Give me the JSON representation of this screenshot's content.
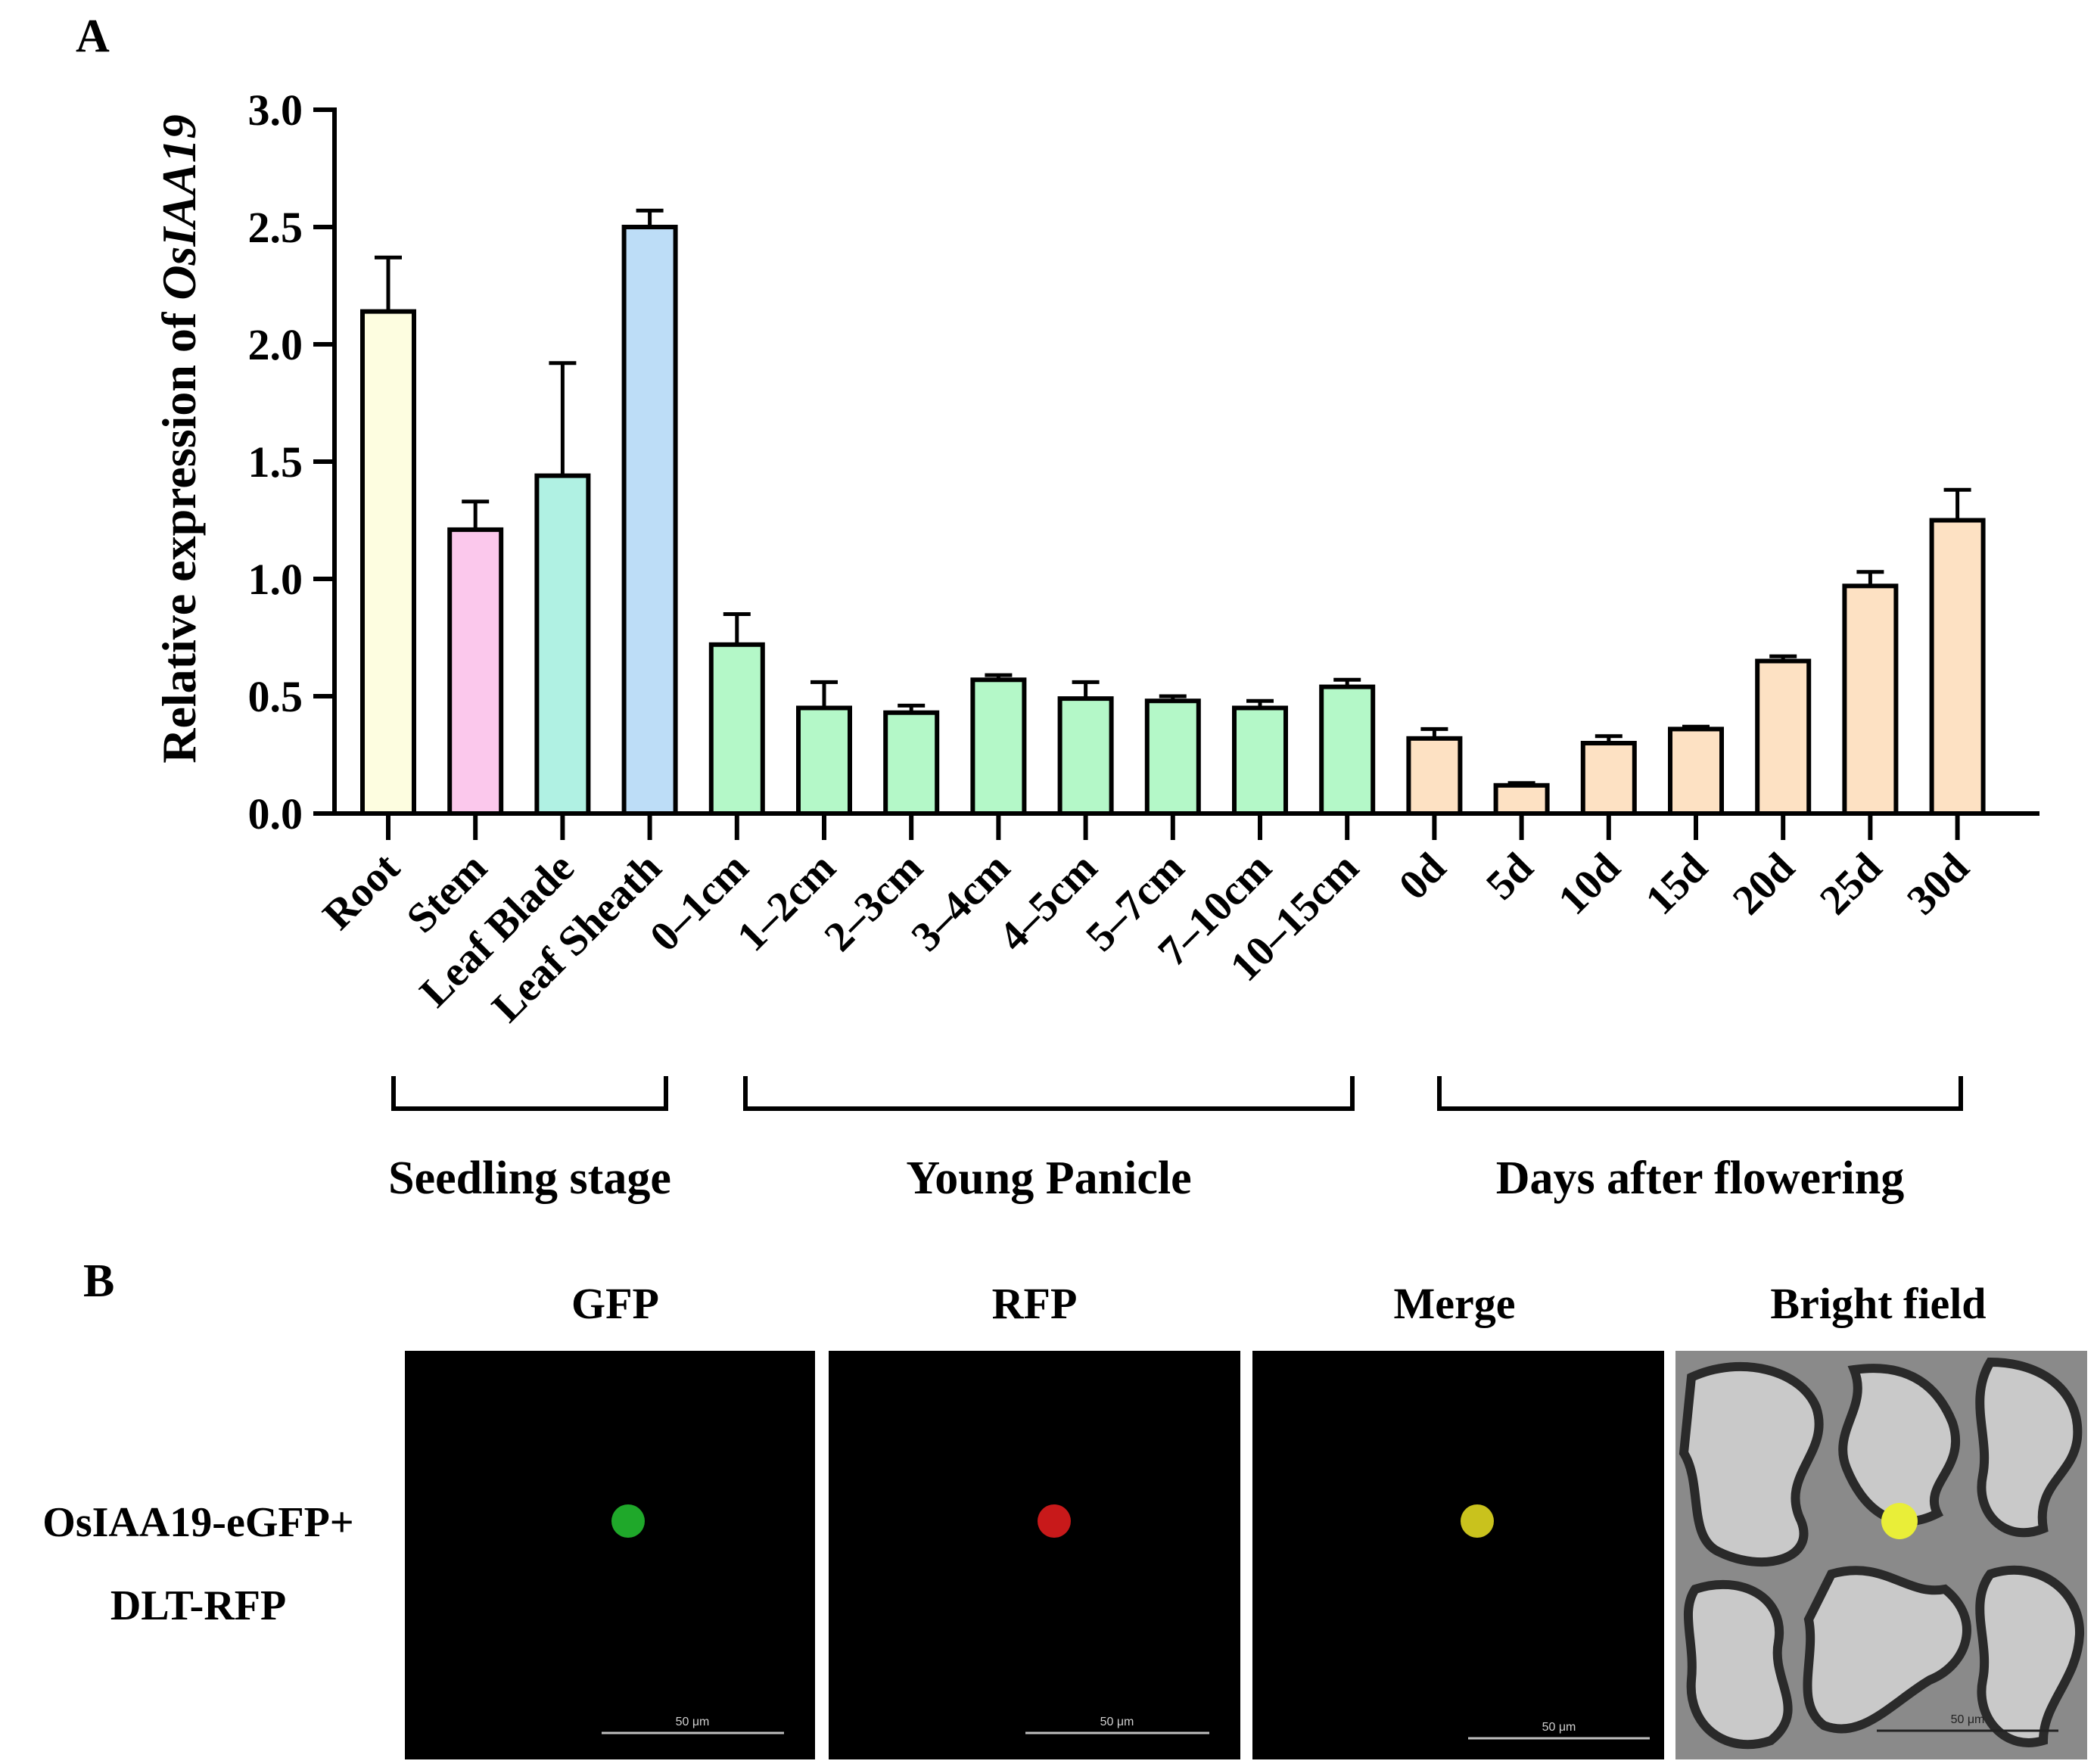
{
  "panel_a_label": "A",
  "panel_b_label": "B",
  "chart_data": {
    "type": "bar",
    "ylabel_prefix": "Relative expression of ",
    "ylabel_gene": "OsIAA19",
    "ylim": [
      0,
      3.0
    ],
    "yticks": [
      "0.0",
      "0.5",
      "1.0",
      "1.5",
      "2.0",
      "2.5",
      "3.0"
    ],
    "categories": [
      "Root",
      "Stem",
      "Leaf Blade",
      "Leaf Sheath",
      "0–1cm",
      "1–2cm",
      "2–3cm",
      "3–4cm",
      "4–5cm",
      "5–7cm",
      "7–10cm",
      "10–15cm",
      "0d",
      "5d",
      "10d",
      "15d",
      "20d",
      "25d",
      "30d"
    ],
    "values": [
      2.14,
      1.21,
      1.44,
      2.5,
      0.72,
      0.45,
      0.43,
      0.57,
      0.49,
      0.48,
      0.45,
      0.54,
      0.32,
      0.12,
      0.3,
      0.36,
      0.65,
      0.97,
      1.25
    ],
    "errors": [
      0.23,
      0.12,
      0.48,
      0.07,
      0.13,
      0.11,
      0.03,
      0.02,
      0.07,
      0.02,
      0.03,
      0.03,
      0.04,
      0.01,
      0.03,
      0.01,
      0.02,
      0.06,
      0.13
    ],
    "colors": [
      "#fdfde0",
      "#fbc8ec",
      "#b0f1e3",
      "#bdddf7",
      "#b4f8c8",
      "#b4f8c8",
      "#b4f8c8",
      "#b4f8c8",
      "#b4f8c8",
      "#b4f8c8",
      "#b4f8c8",
      "#b4f8c8",
      "#fde1c3",
      "#fde1c3",
      "#fde1c3",
      "#fde1c3",
      "#fde1c3",
      "#fde1c3",
      "#fde1c3"
    ],
    "groups": [
      {
        "label": "Seedling stage",
        "start": 0,
        "end": 3
      },
      {
        "label": "Young Panicle",
        "start": 4,
        "end": 11
      },
      {
        "label": "Days after flowering",
        "start": 12,
        "end": 18
      }
    ]
  },
  "microscopy": {
    "columns": [
      "GFP",
      "RFP",
      "Merge",
      "Bright field"
    ],
    "row_label_line1": "OsIAA19-eGFP+",
    "row_label_line2": "DLT-RFP",
    "scale_bar_label": "50 μm",
    "dot_colors": [
      "#1fa82a",
      "#c8191a",
      "#c9c21d",
      "#e9ee38"
    ],
    "bright_field_color": "#8a8a8a"
  }
}
